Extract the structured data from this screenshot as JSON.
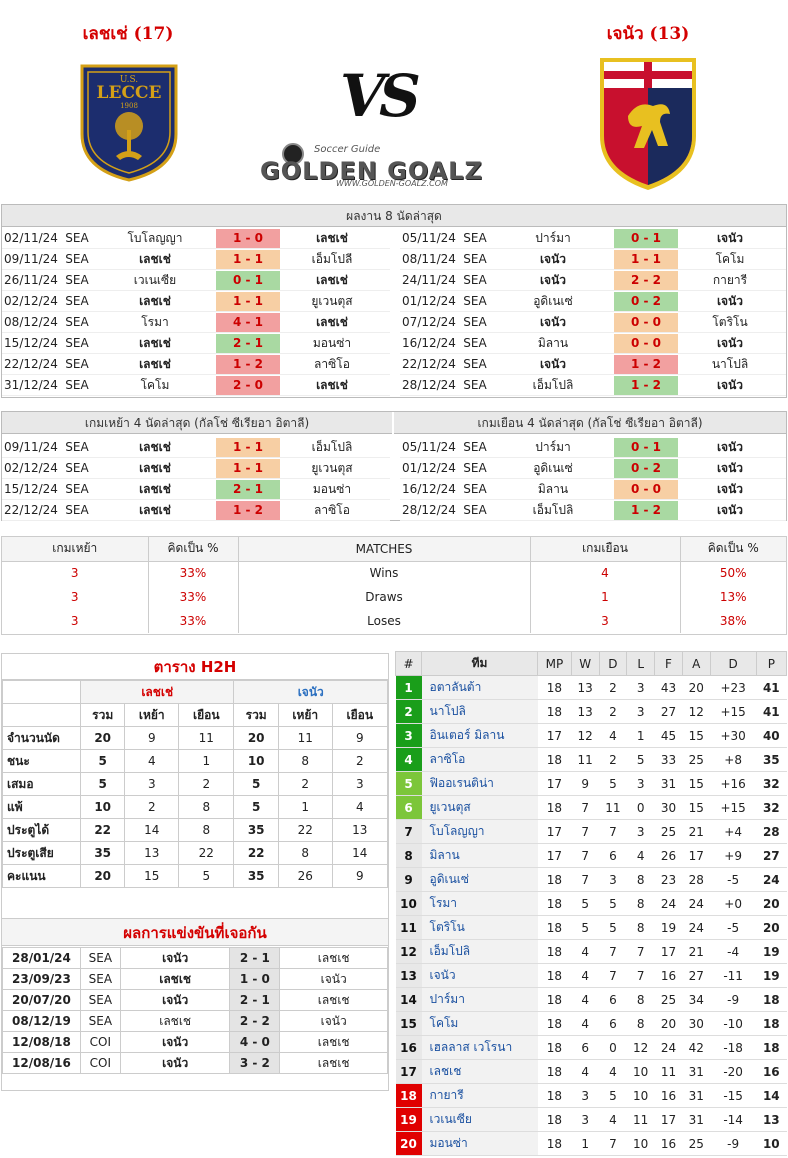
{
  "header": {
    "home": "เลชเช่ (17)",
    "away": "เจนัว (13)",
    "vs": "VS",
    "logo_home_text": "U.S. LECCE 1908",
    "logo_tag": "Soccer Guide",
    "logo_brand": "GOLDEN GOALZ",
    "logo_url": "WWW.GOLDEN-GOALZ.COM"
  },
  "last8": {
    "title": "ผลงาน 8 นัดล่าสุด",
    "home": [
      [
        "02/11/24",
        "SEA",
        "โบโลญญา",
        "1 - 0",
        "เลชเช่",
        "red",
        "r"
      ],
      [
        "09/11/24",
        "SEA",
        "เลชเช่",
        "1 - 1",
        "เอ็มโปลี",
        "orn",
        "l"
      ],
      [
        "26/11/24",
        "SEA",
        "เวเนเซีย",
        "0 - 1",
        "เลชเช่",
        "grn",
        "r"
      ],
      [
        "02/12/24",
        "SEA",
        "เลชเช่",
        "1 - 1",
        "ยูเวนตุส",
        "orn",
        "l"
      ],
      [
        "08/12/24",
        "SEA",
        "โรมา",
        "4 - 1",
        "เลชเช่",
        "red",
        "r"
      ],
      [
        "15/12/24",
        "SEA",
        "เลชเช่",
        "2 - 1",
        "มอนซ่า",
        "grn",
        "l"
      ],
      [
        "22/12/24",
        "SEA",
        "เลชเช่",
        "1 - 2",
        "ลาซิโอ",
        "red",
        "l"
      ],
      [
        "31/12/24",
        "SEA",
        "โคโม",
        "2 - 0",
        "เลชเช่",
        "red",
        "r"
      ]
    ],
    "away": [
      [
        "05/11/24",
        "SEA",
        "ปาร์มา",
        "0 - 1",
        "เจนัว",
        "grn",
        "r"
      ],
      [
        "08/11/24",
        "SEA",
        "เจนัว",
        "1 - 1",
        "โคโม",
        "orn",
        "l"
      ],
      [
        "24/11/24",
        "SEA",
        "เจนัว",
        "2 - 2",
        "กายารี",
        "orn",
        "l"
      ],
      [
        "01/12/24",
        "SEA",
        "อูดิเนเซ่",
        "0 - 2",
        "เจนัว",
        "grn",
        "r"
      ],
      [
        "07/12/24",
        "SEA",
        "เจนัว",
        "0 - 0",
        "โตริโน",
        "orn",
        "l"
      ],
      [
        "16/12/24",
        "SEA",
        "มิลาน",
        "0 - 0",
        "เจนัว",
        "orn",
        "r"
      ],
      [
        "22/12/24",
        "SEA",
        "เจนัว",
        "1 - 2",
        "นาโปลิ",
        "red",
        "l"
      ],
      [
        "28/12/24",
        "SEA",
        "เอ็มโปลิ",
        "1 - 2",
        "เจนัว",
        "grn",
        "r"
      ]
    ]
  },
  "last4": {
    "home_title": "เกมเหย้า 4 นัดล่าสุด (กัลโช่ ซีเรียอา อิตาลี)",
    "away_title": "เกมเยือน 4 นัดล่าสุด (กัลโช่ ซีเรียอา อิตาลี)",
    "home": [
      [
        "09/11/24",
        "SEA",
        "เลชเช่",
        "1 - 1",
        "เอ็มโปลิ",
        "orn"
      ],
      [
        "02/12/24",
        "SEA",
        "เลชเช่",
        "1 - 1",
        "ยูเวนตุส",
        "orn"
      ],
      [
        "15/12/24",
        "SEA",
        "เลชเช่",
        "2 - 1",
        "มอนซ่า",
        "grn"
      ],
      [
        "22/12/24",
        "SEA",
        "เลชเช่",
        "1 - 2",
        "ลาซิโอ",
        "red"
      ]
    ],
    "away": [
      [
        "05/11/24",
        "SEA",
        "ปาร์มา",
        "0 - 1",
        "เจนัว",
        "grn"
      ],
      [
        "01/12/24",
        "SEA",
        "อูดิเนเซ่",
        "0 - 2",
        "เจนัว",
        "grn"
      ],
      [
        "16/12/24",
        "SEA",
        "มิลาน",
        "0 - 0",
        "เจนัว",
        "orn"
      ],
      [
        "28/12/24",
        "SEA",
        "เอ็มโปลิ",
        "1 - 2",
        "เจนัว",
        "grn"
      ]
    ]
  },
  "matches": {
    "h1": "เกมเหย้า",
    "h2": "คิดเป็น %",
    "h3": "MATCHES",
    "h4": "เกมเยือน",
    "h5": "คิดเป็น %",
    "rows": [
      [
        "3",
        "33%",
        "Wins",
        "4",
        "50%"
      ],
      [
        "3",
        "33%",
        "Draws",
        "1",
        "13%"
      ],
      [
        "3",
        "33%",
        "Loses",
        "3",
        "38%"
      ]
    ]
  },
  "h2h": {
    "title": "ตาราง H2H",
    "home": "เลชเช่",
    "away": "เจนัว",
    "cols": [
      "รวม",
      "เหย้า",
      "เยือน",
      "รวม",
      "เหย้า",
      "เยือน"
    ],
    "rows": [
      [
        "จำนวนนัด",
        "20",
        "9",
        "11",
        "20",
        "11",
        "9"
      ],
      [
        "ชนะ",
        "5",
        "4",
        "1",
        "10",
        "8",
        "2"
      ],
      [
        "เสมอ",
        "5",
        "3",
        "2",
        "5",
        "2",
        "3"
      ],
      [
        "แพ้",
        "10",
        "2",
        "8",
        "5",
        "1",
        "4"
      ],
      [
        "ประตูได้",
        "22",
        "14",
        "8",
        "35",
        "22",
        "13"
      ],
      [
        "ประตูเสีย",
        "35",
        "13",
        "22",
        "22",
        "8",
        "14"
      ],
      [
        "คะแนน",
        "20",
        "15",
        "5",
        "35",
        "26",
        "9"
      ]
    ]
  },
  "results": {
    "title": "ผลการแข่งขันที่เจอกัน",
    "rows": [
      [
        "28/01/24",
        "SEA",
        "เจนัว",
        "2 - 1",
        "เลชเช"
      ],
      [
        "23/09/23",
        "SEA",
        "เลชเช",
        "1 - 0",
        "เจนัว"
      ],
      [
        "20/07/20",
        "SEA",
        "เจนัว",
        "2 - 1",
        "เลชเช"
      ],
      [
        "08/12/19",
        "SEA",
        "เลชเช",
        "2 - 2",
        "เจนัว"
      ],
      [
        "12/08/18",
        "COI",
        "เจนัว",
        "4 - 0",
        "เลชเช"
      ],
      [
        "12/08/16",
        "COI",
        "เจนัว",
        "3 - 2",
        "เลชเช"
      ]
    ]
  },
  "standings": {
    "cols": [
      "#",
      "ทีม",
      "MP",
      "W",
      "D",
      "L",
      "F",
      "A",
      "D",
      "P"
    ],
    "rows": [
      [
        "1",
        "อตาลันต้า",
        "18",
        "13",
        "2",
        "3",
        "43",
        "20",
        "+23",
        "41",
        "#1a9e1a"
      ],
      [
        "2",
        "นาโปลิ",
        "18",
        "13",
        "2",
        "3",
        "27",
        "12",
        "+15",
        "41",
        "#1a9e1a"
      ],
      [
        "3",
        "อินเตอร์ มิลาน",
        "17",
        "12",
        "4",
        "1",
        "45",
        "15",
        "+30",
        "40",
        "#1a9e1a"
      ],
      [
        "4",
        "ลาซิโอ",
        "18",
        "11",
        "2",
        "5",
        "33",
        "25",
        "+8",
        "35",
        "#1a9e1a"
      ],
      [
        "5",
        "ฟิออเรนติน่า",
        "17",
        "9",
        "5",
        "3",
        "31",
        "15",
        "+16",
        "32",
        "#7cc63a"
      ],
      [
        "6",
        "ยูเวนตุส",
        "18",
        "7",
        "11",
        "0",
        "30",
        "15",
        "+15",
        "32",
        "#7cc63a"
      ],
      [
        "7",
        "โบโลญญา",
        "17",
        "7",
        "7",
        "3",
        "25",
        "21",
        "+4",
        "28",
        "#e8e8e8"
      ],
      [
        "8",
        "มิลาน",
        "17",
        "7",
        "6",
        "4",
        "26",
        "17",
        "+9",
        "27",
        "#e8e8e8"
      ],
      [
        "9",
        "อูดิเนเซ่",
        "18",
        "7",
        "3",
        "8",
        "23",
        "28",
        "-5",
        "24",
        "#e8e8e8"
      ],
      [
        "10",
        "โรมา",
        "18",
        "5",
        "5",
        "8",
        "24",
        "24",
        "+0",
        "20",
        "#e8e8e8"
      ],
      [
        "11",
        "โตริโน",
        "18",
        "5",
        "5",
        "8",
        "19",
        "24",
        "-5",
        "20",
        "#e8e8e8"
      ],
      [
        "12",
        "เอ็มโปลิ",
        "18",
        "4",
        "7",
        "7",
        "17",
        "21",
        "-4",
        "19",
        "#e8e8e8"
      ],
      [
        "13",
        "เจนัว",
        "18",
        "4",
        "7",
        "7",
        "16",
        "27",
        "-11",
        "19",
        "#e8e8e8"
      ],
      [
        "14",
        "ปาร์มา",
        "18",
        "4",
        "6",
        "8",
        "25",
        "34",
        "-9",
        "18",
        "#e8e8e8"
      ],
      [
        "15",
        "โคโม",
        "18",
        "4",
        "6",
        "8",
        "20",
        "30",
        "-10",
        "18",
        "#e8e8e8"
      ],
      [
        "16",
        "เฮลลาส เวโรนา",
        "18",
        "6",
        "0",
        "12",
        "24",
        "42",
        "-18",
        "18",
        "#e8e8e8"
      ],
      [
        "17",
        "เลชเช",
        "18",
        "4",
        "4",
        "10",
        "11",
        "31",
        "-20",
        "16",
        "#e8e8e8"
      ],
      [
        "18",
        "กายารี",
        "18",
        "3",
        "5",
        "10",
        "16",
        "31",
        "-15",
        "14",
        "#e00000"
      ],
      [
        "19",
        "เวเนเซีย",
        "18",
        "3",
        "4",
        "11",
        "17",
        "31",
        "-14",
        "13",
        "#e00000"
      ],
      [
        "20",
        "มอนซ่า",
        "18",
        "1",
        "7",
        "10",
        "16",
        "25",
        "-9",
        "10",
        "#e00000"
      ]
    ]
  }
}
